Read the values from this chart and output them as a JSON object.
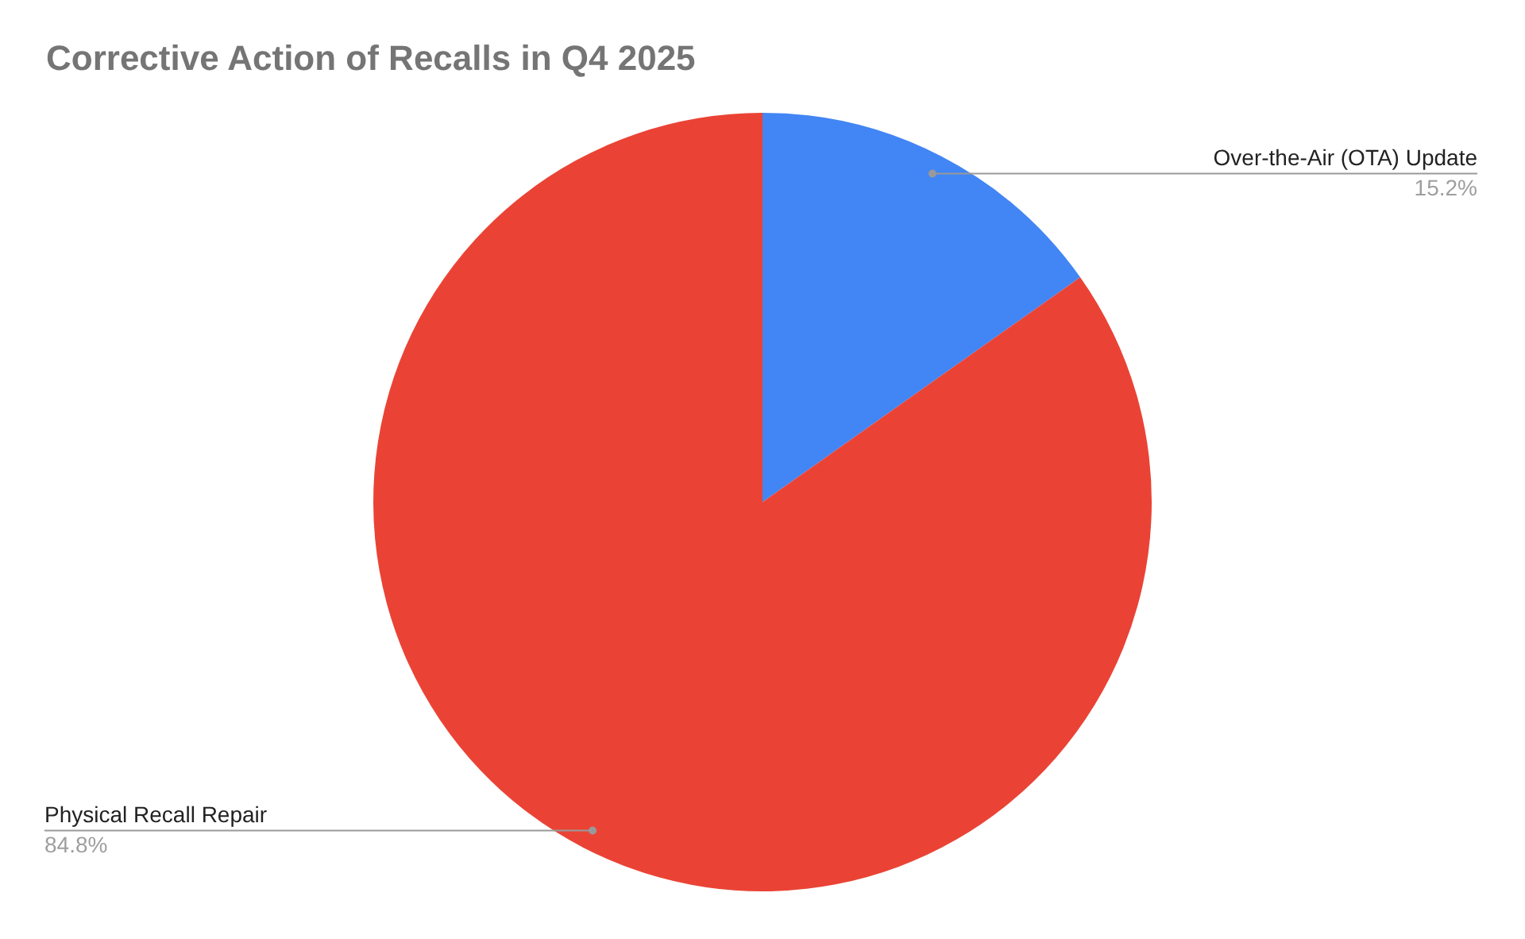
{
  "chart_data": {
    "type": "pie",
    "title": "Corrective Action of Recalls in Q4 2025",
    "categories": [
      "Over-the-Air (OTA) Update",
      "Physical Recall Repair"
    ],
    "values": [
      15.2,
      84.8
    ],
    "colors": [
      "#4285f4",
      "#ea4335"
    ],
    "value_labels": [
      "15.2%",
      "84.8%"
    ],
    "legend": false
  }
}
